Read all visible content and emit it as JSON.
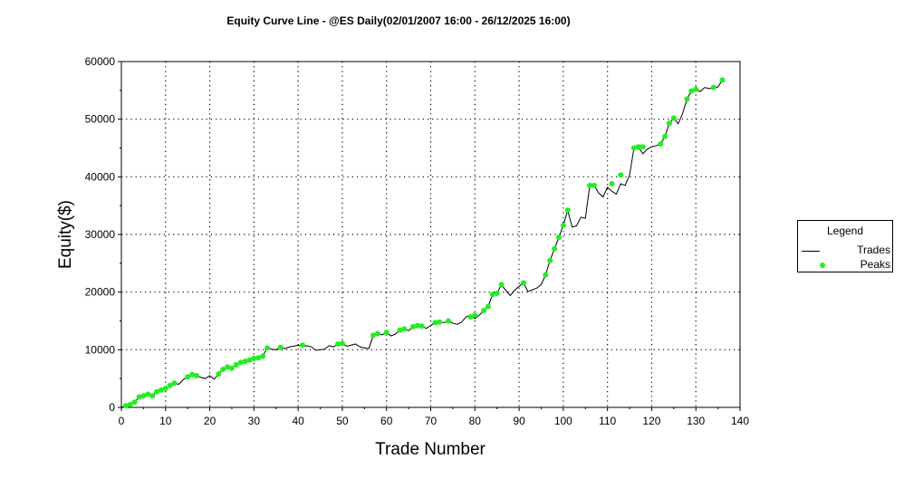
{
  "chart_data": {
    "type": "line",
    "title": "Equity Curve Line - @ES Daily(02/01/2007 16:00 - 26/12/2025 16:00)",
    "xlabel": "Trade Number",
    "ylabel": "Equity($)",
    "xlim": [
      0,
      140
    ],
    "ylim": [
      0,
      60000
    ],
    "xticks": [
      0,
      10,
      20,
      30,
      40,
      50,
      60,
      70,
      80,
      90,
      100,
      110,
      120,
      130,
      140
    ],
    "yticks": [
      0,
      10000,
      20000,
      30000,
      40000,
      50000,
      60000
    ],
    "grid": true,
    "legend": {
      "title": "Legend",
      "position": "right"
    },
    "series": [
      {
        "name": "Trades",
        "color": "#000000",
        "x": [
          0,
          1,
          2,
          3,
          4,
          5,
          6,
          7,
          8,
          9,
          10,
          11,
          12,
          13,
          14,
          15,
          16,
          17,
          18,
          19,
          20,
          21,
          22,
          23,
          24,
          25,
          26,
          27,
          28,
          29,
          30,
          31,
          32,
          33,
          34,
          35,
          36,
          37,
          38,
          39,
          40,
          41,
          42,
          43,
          44,
          45,
          46,
          47,
          48,
          49,
          50,
          51,
          52,
          53,
          54,
          55,
          56,
          57,
          58,
          59,
          60,
          61,
          62,
          63,
          64,
          65,
          66,
          67,
          68,
          69,
          70,
          71,
          72,
          73,
          74,
          75,
          76,
          77,
          78,
          79,
          80,
          81,
          82,
          83,
          84,
          85,
          86,
          87,
          88,
          89,
          90,
          91,
          92,
          93,
          94,
          95,
          96,
          97,
          98,
          99,
          100,
          101,
          102,
          103,
          104,
          105,
          106,
          107,
          108,
          109,
          110,
          111,
          112,
          113,
          114,
          115,
          116,
          117,
          118,
          119,
          120,
          121,
          122,
          123,
          124,
          125,
          126,
          127,
          128,
          129,
          130,
          131,
          132,
          133,
          134,
          135,
          136
        ],
        "y": [
          0,
          300,
          500,
          900,
          1800,
          2000,
          2300,
          2000,
          2700,
          3000,
          3300,
          3800,
          4200,
          4000,
          4800,
          5300,
          5700,
          5500,
          5200,
          5000,
          5500,
          4900,
          5800,
          6600,
          7000,
          6800,
          7400,
          7800,
          8000,
          8200,
          8500,
          8600,
          8900,
          10300,
          10100,
          10000,
          10400,
          10200,
          10500,
          10600,
          10800,
          10500,
          10700,
          10500,
          9900,
          10000,
          10100,
          10700,
          10500,
          11000,
          11100,
          10600,
          10800,
          11000,
          10500,
          10300,
          10200,
          12500,
          12800,
          12600,
          13000,
          12400,
          12700,
          13400,
          13600,
          13300,
          14000,
          14200,
          14100,
          13700,
          14200,
          14700,
          14800,
          14700,
          15000,
          14600,
          14400,
          14800,
          15700,
          16000,
          15400,
          16000,
          16800,
          17500,
          19600,
          19800,
          21300,
          20300,
          19400,
          20300,
          21000,
          21600,
          20100,
          20400,
          20700,
          21300,
          23000,
          25500,
          27500,
          29500,
          31600,
          34200,
          31300,
          31500,
          33000,
          32800,
          38500,
          38500,
          37200,
          36500,
          38200,
          37500,
          37000,
          38800,
          38500,
          40300,
          45000,
          45200,
          44000,
          44800,
          45200,
          45400,
          45700,
          47000,
          49300,
          50200,
          49200,
          51000,
          53500,
          54900,
          55200,
          54800,
          55500,
          55300,
          55400,
          55600,
          56800
        ]
      },
      {
        "name": "Peaks",
        "color": "#22ee22",
        "x": [
          1,
          2,
          3,
          4,
          5,
          6,
          7,
          8,
          9,
          10,
          11,
          12,
          15,
          16,
          17,
          22,
          23,
          24,
          25,
          26,
          27,
          28,
          29,
          30,
          31,
          32,
          33,
          36,
          41,
          49,
          50,
          57,
          58,
          60,
          63,
          64,
          66,
          67,
          68,
          71,
          72,
          74,
          79,
          80,
          82,
          83,
          84,
          85,
          86,
          91,
          96,
          97,
          98,
          99,
          100,
          101,
          106,
          107,
          111,
          113,
          116,
          117,
          118,
          122,
          123,
          124,
          125,
          128,
          129,
          130,
          134,
          136
        ],
        "y": [
          300,
          500,
          900,
          1800,
          2000,
          2300,
          2000,
          2700,
          3000,
          3300,
          3800,
          4200,
          5300,
          5700,
          5500,
          5800,
          6600,
          7000,
          6800,
          7400,
          7800,
          8000,
          8200,
          8500,
          8600,
          8900,
          10300,
          10400,
          10800,
          11000,
          11100,
          12500,
          12800,
          13000,
          13400,
          13600,
          14000,
          14200,
          14100,
          14700,
          14800,
          15000,
          15700,
          16000,
          16800,
          17500,
          19600,
          19800,
          21300,
          21600,
          23000,
          25500,
          27500,
          29500,
          31600,
          34200,
          38500,
          38500,
          38800,
          40300,
          45000,
          45200,
          45200,
          45700,
          47000,
          49300,
          50200,
          53500,
          54900,
          55200,
          55500,
          56800
        ]
      }
    ]
  },
  "legend": {
    "title": "Legend",
    "items": [
      {
        "label": "Trades",
        "color": "#000000",
        "kind": "line"
      },
      {
        "label": "Peaks",
        "color": "#22ee22",
        "kind": "dot"
      }
    ]
  }
}
